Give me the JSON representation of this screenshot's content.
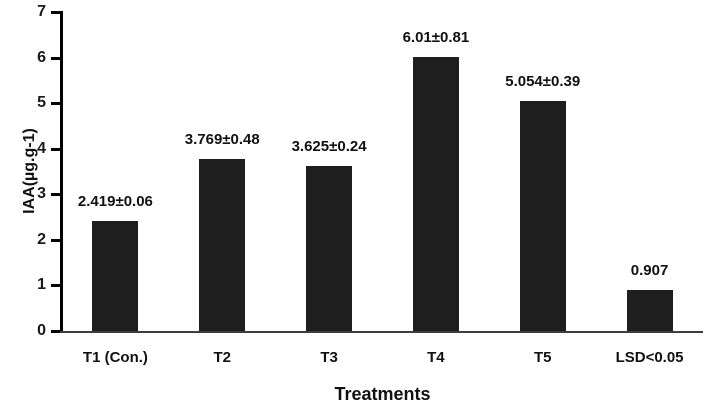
{
  "chart_data": {
    "type": "bar",
    "title": "",
    "xlabel": "Treatments",
    "ylabel": "IAA(µg.g-1)",
    "categories": [
      "T1 (Con.)",
      "T2",
      "T3",
      "T4",
      "T5",
      "LSD<0.05"
    ],
    "values": [
      2.419,
      3.769,
      3.625,
      6.01,
      5.054,
      0.907
    ],
    "bar_labels": [
      "2.419±0.06",
      "3.769±0.48",
      "3.625±0.24",
      "6.01±0.81",
      "5.054±0.39",
      "0.907"
    ],
    "ylim": [
      0,
      7
    ],
    "yticks": [
      0,
      1,
      2,
      3,
      4,
      5,
      6,
      7
    ],
    "bar_color": "#1e1e1e",
    "axis_color": "#000000",
    "baseline_color": "#3d3d3d",
    "grid": "off",
    "legend": "none"
  }
}
